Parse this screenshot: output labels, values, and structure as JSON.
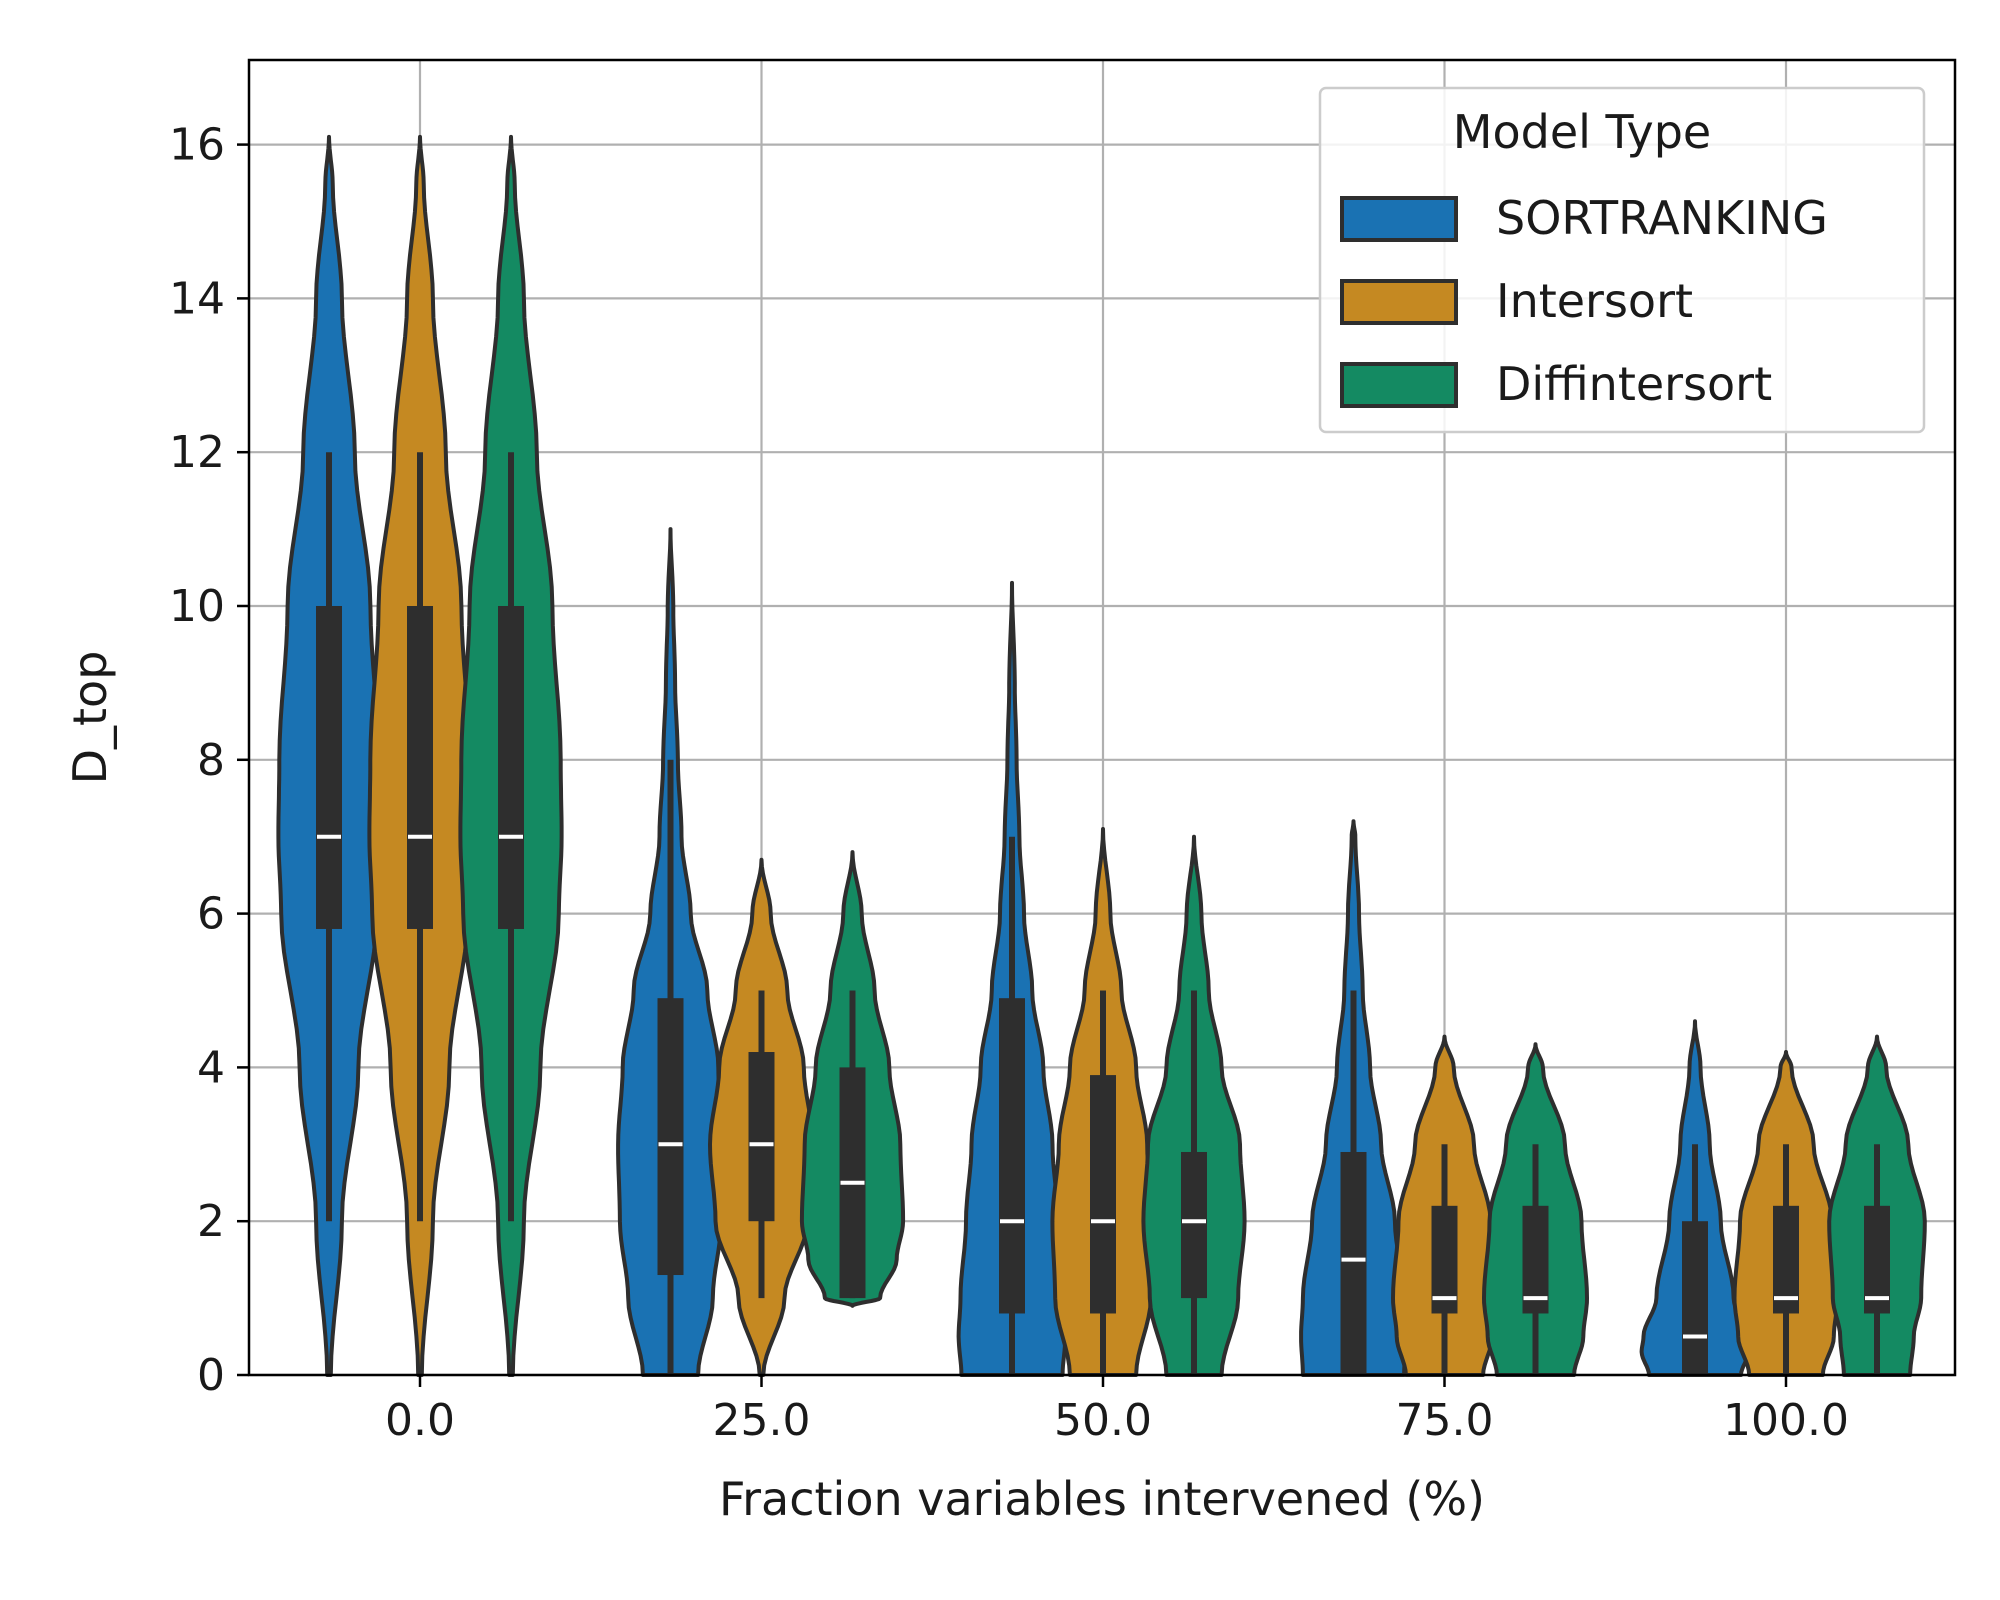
{
  "chart_data": {
    "type": "violin",
    "title": "",
    "xlabel": "Fraction variables intervened (%)",
    "ylabel": "D_top",
    "ylim": [
      0,
      17.1
    ],
    "yticks": [
      0,
      2,
      4,
      6,
      8,
      10,
      12,
      14,
      16
    ],
    "ytick_labels": [
      "0",
      "2",
      "4",
      "6",
      "8",
      "10",
      "12",
      "14",
      "16"
    ],
    "categories": [
      "0.0",
      "25.0",
      "50.0",
      "75.0",
      "100.0"
    ],
    "grid": true,
    "legend": {
      "title": "Model Type",
      "position": "top-right"
    },
    "series": [
      {
        "name": "SORTRANKING",
        "color": "#1a72b3",
        "stats": [
          {
            "min": 0,
            "max": 16.1,
            "q1": 5.8,
            "median": 7.0,
            "q3": 10.0,
            "wlo": 2.0,
            "whi": 12.0,
            "profile": [
              [
                0,
                0.02
              ],
              [
                2,
                0.14
              ],
              [
                4,
                0.32
              ],
              [
                6,
                0.52
              ],
              [
                7,
                0.55
              ],
              [
                8,
                0.54
              ],
              [
                10,
                0.45
              ],
              [
                12,
                0.28
              ],
              [
                14,
                0.14
              ],
              [
                15.5,
                0.04
              ],
              [
                16.1,
                0.0
              ]
            ]
          },
          {
            "min": 0,
            "max": 11.0,
            "q1": 1.3,
            "median": 3.0,
            "q3": 4.9,
            "wlo": 0.0,
            "whi": 8.0,
            "profile": [
              [
                0,
                0.3
              ],
              [
                1,
                0.46
              ],
              [
                2,
                0.55
              ],
              [
                3,
                0.57
              ],
              [
                4,
                0.52
              ],
              [
                5,
                0.4
              ],
              [
                6,
                0.22
              ],
              [
                7,
                0.12
              ],
              [
                8,
                0.08
              ],
              [
                9,
                0.05
              ],
              [
                10,
                0.03
              ],
              [
                11,
                0.0
              ]
            ]
          },
          {
            "min": 0,
            "max": 10.3,
            "q1": 0.8,
            "median": 2.0,
            "q3": 4.9,
            "wlo": 0.0,
            "whi": 7.0,
            "profile": [
              [
                0,
                0.55
              ],
              [
                0.5,
                0.58
              ],
              [
                1,
                0.56
              ],
              [
                2,
                0.5
              ],
              [
                3,
                0.44
              ],
              [
                4,
                0.34
              ],
              [
                5,
                0.22
              ],
              [
                6,
                0.13
              ],
              [
                7,
                0.08
              ],
              [
                8,
                0.05
              ],
              [
                9,
                0.03
              ],
              [
                10.3,
                0.0
              ]
            ]
          },
          {
            "min": 0,
            "max": 7.2,
            "q1": 0.0,
            "median": 1.5,
            "q3": 2.9,
            "wlo": 0.0,
            "whi": 5.0,
            "profile": [
              [
                0,
                0.55
              ],
              [
                0.5,
                0.57
              ],
              [
                1,
                0.55
              ],
              [
                2,
                0.45
              ],
              [
                3,
                0.3
              ],
              [
                4,
                0.18
              ],
              [
                5,
                0.1
              ],
              [
                6,
                0.06
              ],
              [
                7,
                0.02
              ],
              [
                7.2,
                0.0
              ]
            ]
          },
          {
            "min": 0,
            "max": 4.6,
            "q1": 0.0,
            "median": 0.5,
            "q3": 2.0,
            "wlo": 0.0,
            "whi": 3.0,
            "profile": [
              [
                0,
                0.5
              ],
              [
                0.3,
                0.58
              ],
              [
                0.5,
                0.56
              ],
              [
                1,
                0.42
              ],
              [
                2,
                0.28
              ],
              [
                3,
                0.16
              ],
              [
                4,
                0.06
              ],
              [
                4.6,
                0.0
              ]
            ]
          }
        ]
      },
      {
        "name": "Intersort",
        "color": "#c58922",
        "stats": [
          {
            "min": 0,
            "max": 16.1,
            "q1": 5.8,
            "median": 7.0,
            "q3": 10.0,
            "wlo": 2.0,
            "whi": 12.0,
            "profile": [
              [
                0,
                0.02
              ],
              [
                2,
                0.14
              ],
              [
                4,
                0.32
              ],
              [
                6,
                0.52
              ],
              [
                7,
                0.55
              ],
              [
                8,
                0.54
              ],
              [
                10,
                0.45
              ],
              [
                12,
                0.28
              ],
              [
                14,
                0.14
              ],
              [
                15.5,
                0.04
              ],
              [
                16.1,
                0.0
              ]
            ]
          },
          {
            "min": 0,
            "max": 6.7,
            "q1": 2.0,
            "median": 3.0,
            "q3": 4.2,
            "wlo": 1.0,
            "whi": 5.0,
            "profile": [
              [
                0,
                0.02
              ],
              [
                1,
                0.25
              ],
              [
                2,
                0.5
              ],
              [
                3,
                0.56
              ],
              [
                4,
                0.46
              ],
              [
                5,
                0.28
              ],
              [
                6,
                0.1
              ],
              [
                6.7,
                0.0
              ]
            ]
          },
          {
            "min": 0,
            "max": 7.1,
            "q1": 0.8,
            "median": 2.0,
            "q3": 3.9,
            "wlo": 0.0,
            "whi": 5.0,
            "profile": [
              [
                0,
                0.36
              ],
              [
                1,
                0.52
              ],
              [
                2,
                0.55
              ],
              [
                3,
                0.48
              ],
              [
                4,
                0.36
              ],
              [
                5,
                0.2
              ],
              [
                6,
                0.08
              ],
              [
                7.1,
                0.0
              ]
            ]
          },
          {
            "min": 0,
            "max": 4.4,
            "q1": 0.8,
            "median": 1.0,
            "q3": 2.2,
            "wlo": 0.0,
            "whi": 3.0,
            "profile": [
              [
                0,
                0.42
              ],
              [
                0.5,
                0.52
              ],
              [
                1,
                0.56
              ],
              [
                2,
                0.5
              ],
              [
                3,
                0.32
              ],
              [
                4,
                0.1
              ],
              [
                4.4,
                0.0
              ]
            ]
          },
          {
            "min": 0,
            "max": 4.2,
            "q1": 0.8,
            "median": 1.0,
            "q3": 2.2,
            "wlo": 0.0,
            "whi": 3.0,
            "profile": [
              [
                0,
                0.4
              ],
              [
                0.5,
                0.52
              ],
              [
                1,
                0.56
              ],
              [
                2,
                0.5
              ],
              [
                3,
                0.3
              ],
              [
                4,
                0.06
              ],
              [
                4.2,
                0.0
              ]
            ]
          }
        ]
      },
      {
        "name": "Diffintersort",
        "color": "#148a62",
        "stats": [
          {
            "min": 0,
            "max": 16.1,
            "q1": 5.8,
            "median": 7.0,
            "q3": 10.0,
            "wlo": 2.0,
            "whi": 12.0,
            "profile": [
              [
                0,
                0.02
              ],
              [
                2,
                0.14
              ],
              [
                4,
                0.32
              ],
              [
                6,
                0.52
              ],
              [
                7,
                0.55
              ],
              [
                8,
                0.54
              ],
              [
                10,
                0.45
              ],
              [
                12,
                0.28
              ],
              [
                14,
                0.14
              ],
              [
                15.5,
                0.04
              ],
              [
                16.1,
                0.0
              ]
            ]
          },
          {
            "min": 0.9,
            "max": 6.8,
            "q1": 1.0,
            "median": 2.5,
            "q3": 4.0,
            "wlo": 1.0,
            "whi": 5.0,
            "profile": [
              [
                0.9,
                0.0
              ],
              [
                1,
                0.3
              ],
              [
                1.5,
                0.48
              ],
              [
                2,
                0.55
              ],
              [
                3,
                0.52
              ],
              [
                4,
                0.4
              ],
              [
                5,
                0.24
              ],
              [
                6,
                0.1
              ],
              [
                6.8,
                0.0
              ]
            ]
          },
          {
            "min": 0,
            "max": 7.0,
            "q1": 1.0,
            "median": 2.0,
            "q3": 2.9,
            "wlo": 0.0,
            "whi": 5.0,
            "profile": [
              [
                0,
                0.3
              ],
              [
                1,
                0.48
              ],
              [
                2,
                0.55
              ],
              [
                3,
                0.5
              ],
              [
                4,
                0.3
              ],
              [
                5,
                0.16
              ],
              [
                6,
                0.08
              ],
              [
                7,
                0.0
              ]
            ]
          },
          {
            "min": 0,
            "max": 4.3,
            "q1": 0.8,
            "median": 1.0,
            "q3": 2.2,
            "wlo": 0.0,
            "whi": 3.0,
            "profile": [
              [
                0,
                0.42
              ],
              [
                0.5,
                0.52
              ],
              [
                1,
                0.56
              ],
              [
                2,
                0.5
              ],
              [
                3,
                0.32
              ],
              [
                4,
                0.08
              ],
              [
                4.3,
                0.0
              ]
            ]
          },
          {
            "min": 0,
            "max": 4.4,
            "q1": 0.8,
            "median": 1.0,
            "q3": 2.2,
            "wlo": 0.0,
            "whi": 3.0,
            "profile": [
              [
                0,
                0.36
              ],
              [
                0.5,
                0.4
              ],
              [
                1,
                0.48
              ],
              [
                2,
                0.52
              ],
              [
                3,
                0.34
              ],
              [
                4,
                0.1
              ],
              [
                4.4,
                0.0
              ]
            ]
          }
        ]
      }
    ]
  }
}
